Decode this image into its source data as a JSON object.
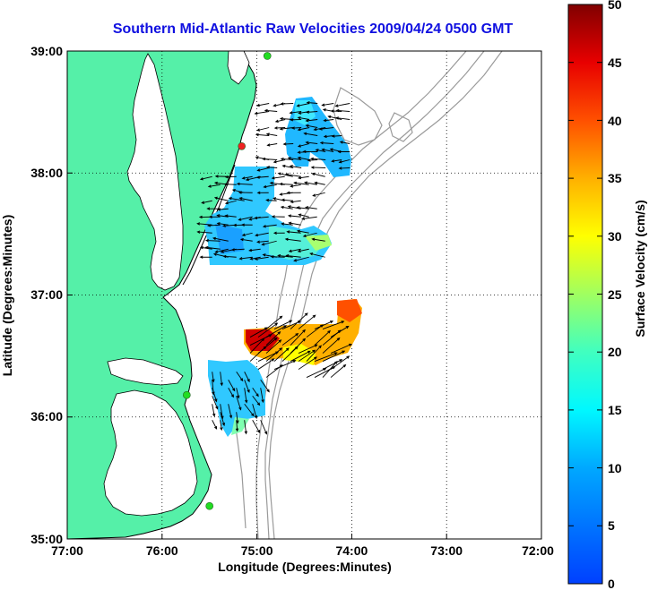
{
  "title": "Southern Mid-Atlantic Raw Velocities 2009/04/24 0500 GMT",
  "x_axis": {
    "label": "Longitude (Degrees:Minutes)",
    "ticks": [
      "77:00",
      "76:00",
      "75:00",
      "74:00",
      "73:00",
      "72:00"
    ]
  },
  "y_axis": {
    "label": "Latitude (Degrees:Minutes)",
    "ticks": [
      "39:00",
      "38:00",
      "37:00",
      "36:00",
      "35:00"
    ]
  },
  "colorbar": {
    "label": "Surface Velocity (cm/s)",
    "ticks": [
      "50",
      "45",
      "40",
      "35",
      "30",
      "25",
      "20",
      "15",
      "10",
      "5",
      "0"
    ],
    "min": 0,
    "max": 50
  },
  "map_extent": {
    "lon_west": -77,
    "lon_east": -72,
    "lat_south": 35,
    "lat_north": 39
  },
  "colors": {
    "land": "#55f0a8",
    "water": "#ffffff",
    "title": "#1010e0",
    "bathymetry": "#9a9a9a",
    "station": "#22dd22",
    "station_alert": "#ee2222"
  },
  "stations": [
    {
      "lon": -74.89,
      "lat": 38.96,
      "status": "ok"
    },
    {
      "lon": -75.16,
      "lat": 38.22,
      "status": "alert"
    },
    {
      "lon": -75.74,
      "lat": 36.18,
      "status": "ok"
    },
    {
      "lon": -75.5,
      "lat": 35.27,
      "status": "ok"
    }
  ],
  "velocity_patches": [
    {
      "region": "north",
      "lon": [
        -74.9,
        -74.0
      ],
      "lat": [
        38.0,
        38.6
      ],
      "speed_cm_s": 9
    },
    {
      "region": "delmarva-offshore",
      "lon": [
        -75.5,
        -74.2
      ],
      "lat": [
        37.25,
        38.0
      ],
      "speed_cm_s": 12
    },
    {
      "region": "outer-banks-north",
      "lon": [
        -75.1,
        -74.2
      ],
      "lat": [
        36.3,
        36.75
      ],
      "speed_cm_s": 40
    },
    {
      "region": "outer-banks-south",
      "lon": [
        -75.5,
        -74.9
      ],
      "lat": [
        35.9,
        36.4
      ],
      "speed_cm_s": 11
    }
  ]
}
